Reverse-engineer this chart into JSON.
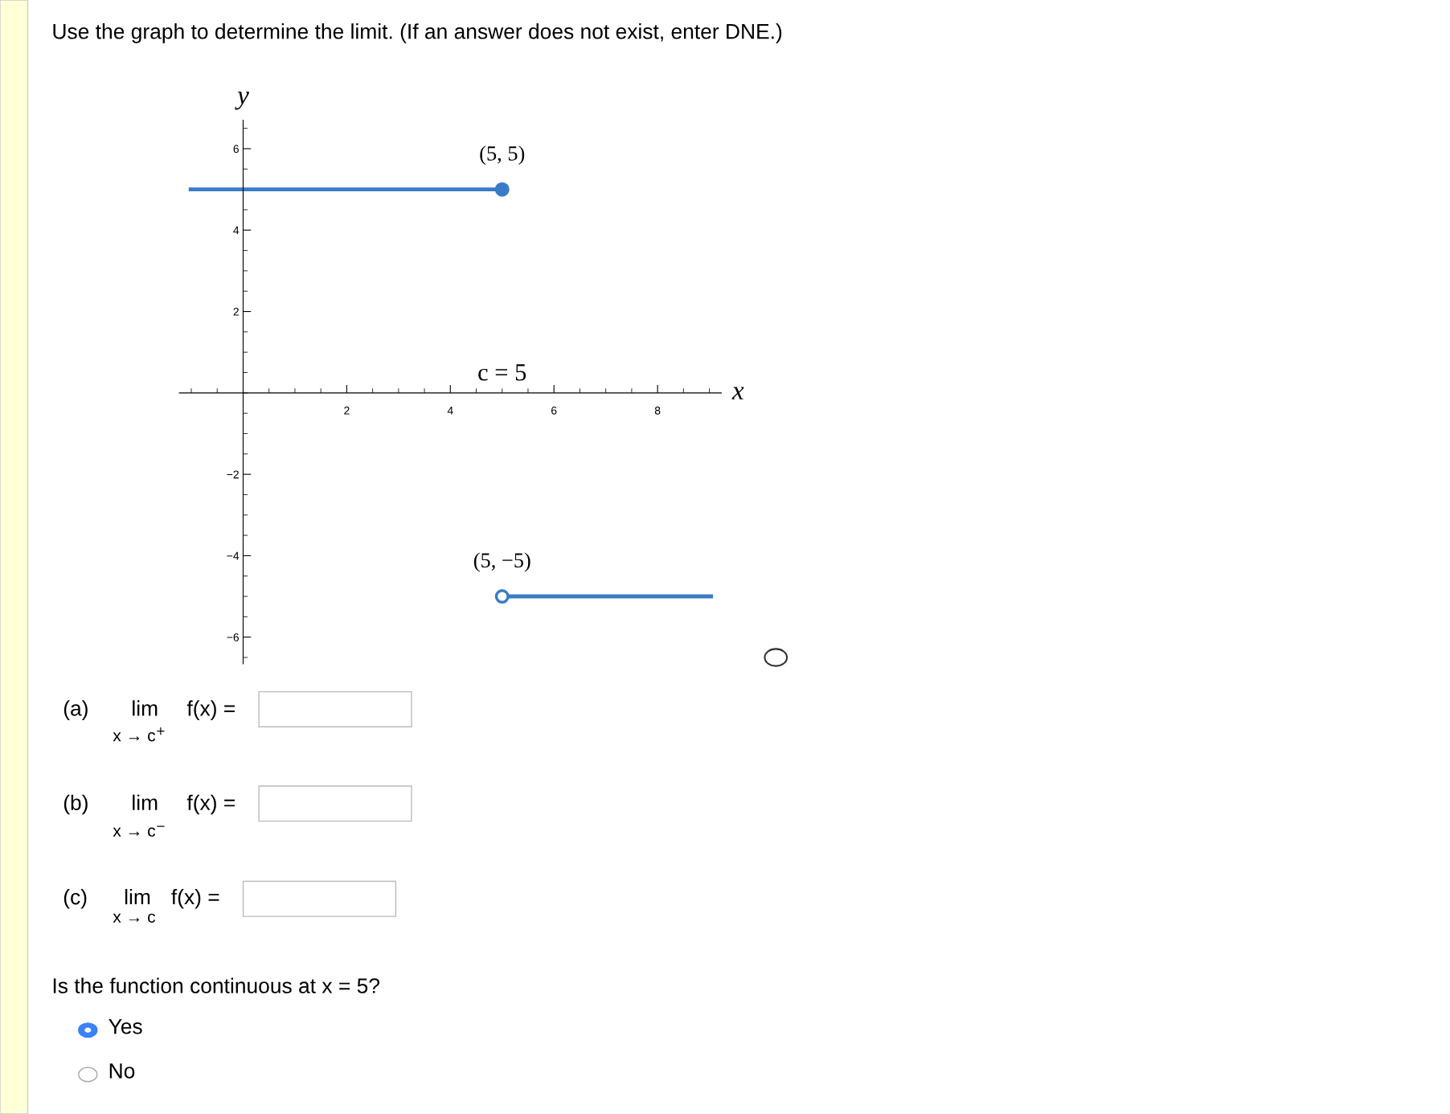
{
  "chart_data": {
    "type": "line",
    "title": "Use the graph to determine the limit. (If an answer does not exist, enter DNE.)",
    "xlabel": "x",
    "ylabel": "y",
    "xlim": [
      -1.23,
      9.23
    ],
    "ylim": [
      -6.66,
      6.7
    ],
    "xticks": [
      2,
      4,
      6,
      8
    ],
    "yticks": [
      {
        "value": -6,
        "label": "−6"
      },
      {
        "value": -4,
        "label": "−4"
      },
      {
        "value": -2,
        "label": "−2"
      },
      2,
      4,
      6
    ],
    "grid": false,
    "series": [
      {
        "color": "#3a7bc8",
        "x": [
          -1.05,
          5
        ],
        "values": [
          5,
          5
        ],
        "marker": "none"
      },
      {
        "color": "#3a7bc8",
        "x": [
          5,
          9.07
        ],
        "values": [
          -5,
          -5
        ],
        "marker": "none"
      },
      {
        "type": "scatter",
        "color": "#3a7bc8",
        "x": [
          5
        ],
        "values": [
          5
        ],
        "marker": "circle"
      },
      {
        "type": "scatter",
        "color": "#3a7bc8",
        "x": [
          5
        ],
        "values": [
          -5
        ],
        "marker": "circle",
        "colors": [
          "#ffffff"
        ]
      }
    ],
    "annotations": [
      {
        "text": "(5, 5)",
        "x": 5,
        "y": 5
      },
      {
        "text": "(5, −5)",
        "x": 5,
        "y": -5
      },
      "c = 5",
      "(a)",
      "lim",
      "x → c$^{+}$",
      "f(x) =",
      "(b)",
      "lim",
      "x → c$^{−}$",
      "f(x) =",
      "(c)",
      "lim",
      "x → c",
      "f(x) =",
      "Is the function continuous at x = 5?",
      "Yes",
      "No"
    ]
  }
}
